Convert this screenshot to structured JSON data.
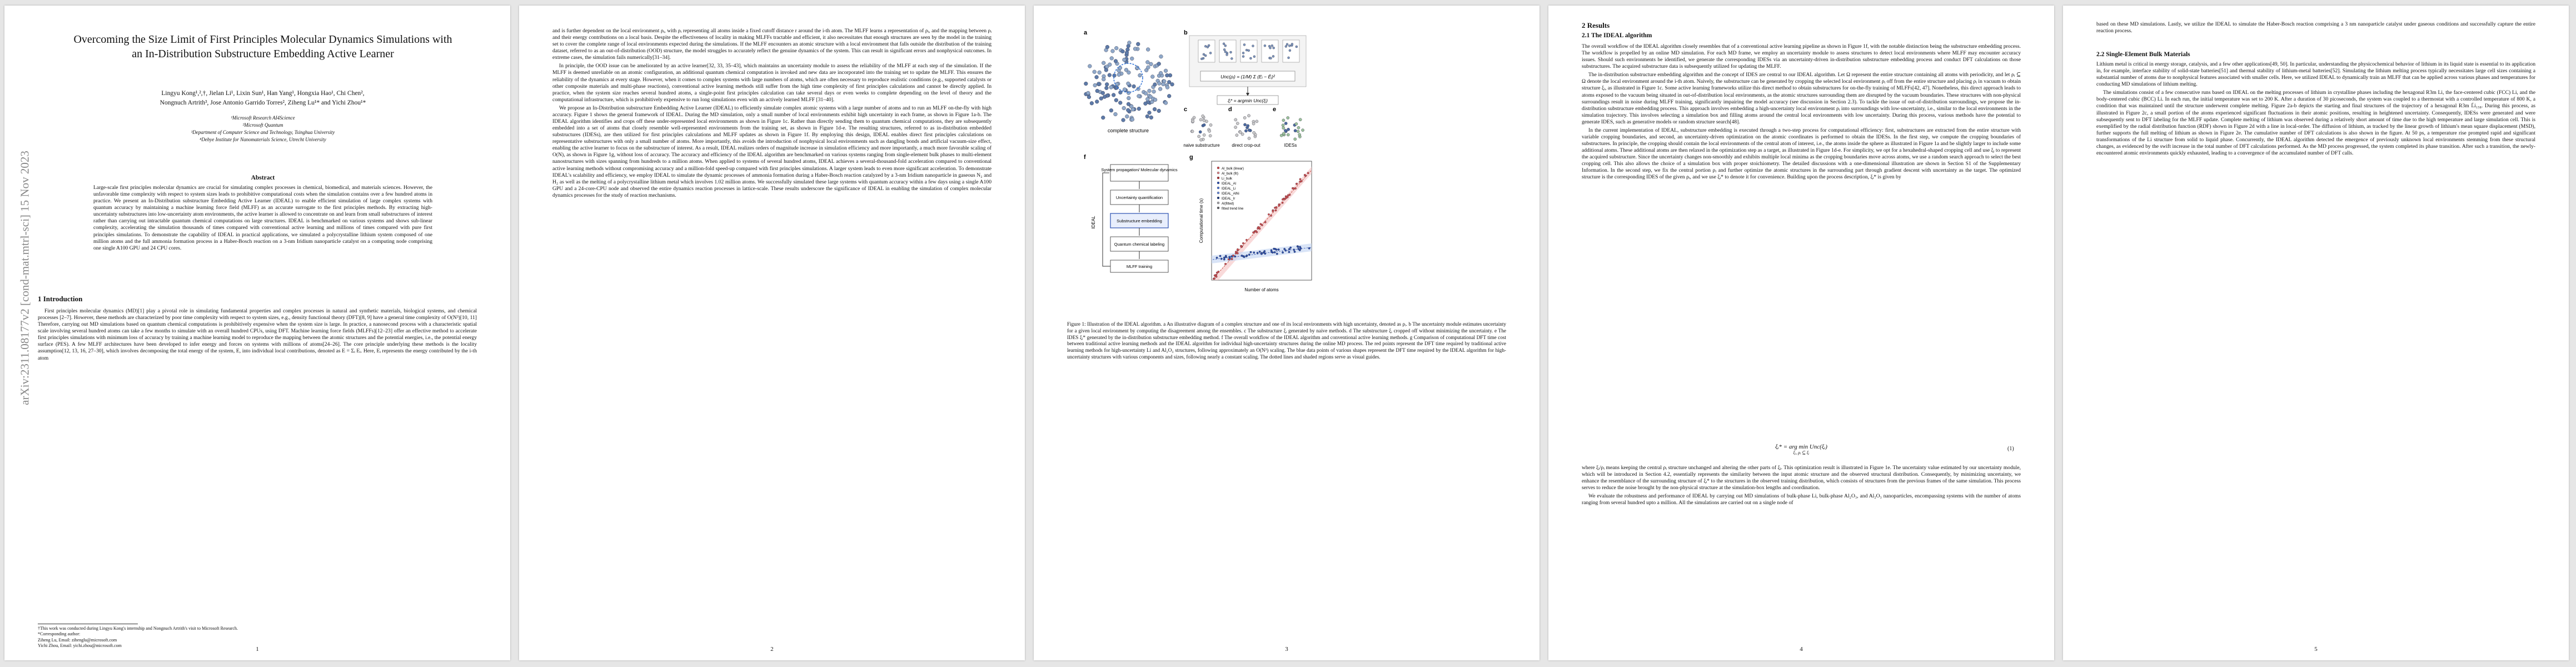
{
  "arxiv_id": "arXiv:2311.08177v2  [cond-mat.mtrl-sci]  15 Nov 2023",
  "page1": {
    "title": "Overcoming the Size Limit of First Principles Molecular Dynamics Simulations with an In-Distribution Substructure Embedding Active Learner",
    "authors_line1": "Lingyu Kong¹,²,†, Jielan Li¹, Lixin Sun¹, Han Yang¹, Hongxia Hao¹, Chi Chen²,",
    "authors_line2": "Nongnuch Artrith³, Jose Antonio Garrido Torres², Ziheng Lu¹* and Yichi Zhou¹*",
    "affil1": "¹Microsoft Research AI4Science",
    "affil2": "²Microsoft Quantum",
    "affil3": "³Department of Computer Science and Technology, Tsinghua University",
    "affil4": "⁴Debye Institute for Nanomaterials Science, Utrecht University",
    "abstract_heading": "Abstract",
    "abstract": "Large-scale first principles molecular dynamics are crucial for simulating complex processes in chemical, biomedical, and materials sciences. However, the unfavorable time complexity with respect to system sizes leads to prohibitive computational costs when the simulation contains over a few hundred atoms in practice. We present an In-Distribution substructure Embedding Active Learner (IDEAL) to enable efficient simulation of large complex systems with quantum accuracy by maintaining a machine learning force field (MLFF) as an accurate surrogate to the first principles methods. By extracting high-uncertainty substructures into low-uncertainty atom environments, the active learner is allowed to concentrate on and learn from small substructures of interest rather than carrying out intractable quantum chemical computations on large structures. IDEAL is benchmarked on various systems and shows sub-linear complexity, accelerating the simulation thousands of times compared with conventional active learning and millions of times compared with pure first principles simulations. To demonstrate the capability of IDEAL in practical applications, we simulated a polycrystalline lithium system composed of one million atoms and the full ammonia formation process in a Haber-Bosch reaction on a 3-nm Iridium nanoparticle catalyst on a computing node comprising one single A100 GPU and 24 CPU cores.",
    "section1": "1   Introduction",
    "intro_p1": "First principles molecular dynamics (MD)[1] play a pivotal role in simulating fundamental properties and complex processes in natural and synthetic materials, biological systems, and chemical processes [2–7]. However, these methods are characterized by poor time complexity with respect to system sizes, e.g., density functional theory (DFT)[8, 9] have a general time complexity of O(N³)[10, 11] Therefore, carrying out MD simulations based on quantum chemical computations is prohibitively expensive when the system size is large. In practice, a nanosecond process with a characteristic spatial scale involving several hundred atoms can take a few months to simulate with an overall hundred CPUs, using DFT. Machine learning force fields (MLFFs)[12–23] offer an effective method to accelerate first principles simulations with minimum loss of accuracy by training a machine learning model to reproduce the mapping between the atomic structures and the potential energies, i.e., the potential energy surface (PES). A few MLFF architectures have been developed to infer energy and forces on systems with millions of atoms[24–26]. The core principle underlying these methods is the locality assumption[12, 13, 16, 27–30], which involves decomposing the total energy of the system, E, into individual local contributions, denoted as E = Σᵢ Eᵢ. Here, Eᵢ represents the energy contributed by the i-th atom",
    "footnote1": "†This work was conducted during Lingyu Kong's internship and Nongnuch Artrith's visit to Microsoft Research.",
    "footnote2": "*Corresponding author:",
    "footnote3": "Ziheng Lu, Email: zihenglu@microsoft.com",
    "footnote4": "Yichi Zhou, Email: yichi.zhou@microsoft.com",
    "page_number": "1"
  },
  "page2": {
    "p1": "and is further dependent on the local environment ρᵢ, with ρᵢ representing all atoms inside a fixed cutoff distance r around the i-th atom. The MLFF learns a representation of ρᵢ, and the mapping between ρᵢ and their energy contributions on a local basis. Despite the effectiveness of locality in making MLFFs tractable and efficient, it also necessitates that enough structures are seen by the model in the training set to cover the complete range of local environments expected during the simulations. If the MLFF encounters an atomic structure with a local environment that falls outside the distribution of the training dataset, referred to as an out-of-distribution (OOD) structure, the model struggles to accurately reflect the genuine dynamics of the system. This can result in significant errors and nonphysical outcomes. In extreme cases, the simulation fails numerically[31–34].",
    "p2": "In principle, the OOD issue can be ameliorated by an active learner[32, 33, 35–43], which maintains an uncertainty module to assess the reliability of the MLFF at each step of the simulation. If the MLFF is deemed unreliable on an atomic configuration, an additional quantum chemical computation is invoked and new data are incorporated into the training set to update the MLFF. This ensures the reliability of the dynamics at every stage. However, when it comes to complex systems with large numbers of atoms, which are often necessary to reproduce realistic conditions (e.g., supported catalysts or other composite materials and multi-phase reactions), conventional active learning methods still suffer from the high time complexity of first principles calculations and cannot be directly applied. In practice, when the system size reaches several hundred atoms, a single-point first principles calculation can take several days or even weeks to complete depending on the level of theory and the computational infrastructure, which is prohibitively expensive to run long simulations even with an actively learned MLFF [31–40].",
    "p3": "We propose an In-Distribution substructure Embedding Active Learner (IDEAL) to efficiently simulate complex atomic systems with a large number of atoms and to run an MLFF on-the-fly with high accuracy. Figure 1 shows the general framework of IDEAL. During the MD simulation, only a small number of local environments exhibit high uncertainty in each frame, as shown in Figure 1a-b. The IDEAL algorithm identifies and crops off these under-represented local environments as shown in Figure 1c. Rather than directly sending them to quantum chemical computations, they are subsequently embedded into a set of atoms that closely resemble well-represented environments from the training set, as shown in Figure 1d-e. The resulting structures, referred to as in-distribution embedded substructures (IDESs), are then utilized for first principles calculations and MLFF updates as shown in Figure 1f. By employing this design, IDEAL enables direct first principles calculations on representative substructures with only a small number of atoms. More importantly, this avoids the introduction of nonphysical local environments such as dangling bonds and artificial vacuum-size effect, enabling the active learner to focus on the substructure of interest. As a result, IDEAL realizes orders of magnitude increase in simulation efficiency and more importantly, a much more favorable scaling of O(N), as shown in Figure 1g, without loss of accuracy. The accuracy and efficiency of the IDEAL algorithm are benchmarked on various systems ranging from single-element bulk phases to multi-element nanostructures with sizes spanning from hundreds to a million atoms. When applied to systems of several hundred atoms, IDEAL achieves a several-thousand-fold acceleration compared to conventional active learning methods without compromising accuracy and a million-fold speed-up compared with first principles simulations. A larger system leads to even more significant acceleration. To demonstrate IDEAL's scalability and efficiency, we employ IDEAL to simulate the dynamic processes of ammonia formation during a Haber-Bosch reaction catalyzed by a 3-nm Iridium nanoparticle in gaseous N₂ and H₂ as well as the melting of a polycrystalline lithium metal which involves 1.02 million atoms. We successfully simulated these large systems with quantum accuracy within a few days using a single A100 GPU and a 24-core-CPU node and observed the entire dynamics reaction processes in lattice-scale. These results underscore the significance of IDEAL in enabling the simulation of complex molecular dynamics processes for the study of reaction mechanisms.",
    "page_number": "2"
  },
  "page3": {
    "figure": {
      "panel_a": "a",
      "panel_b": "b",
      "panel_c": "c",
      "panel_d": "d",
      "panel_e": "e",
      "panel_f": "f",
      "panel_g": "g",
      "complete_structure": "complete structure",
      "naive_substructure": "naive substructure",
      "direct_crop_out": "direct crop-out",
      "ideses": "IDESs",
      "uncertainty_eq": "Unc(ρᵢ) = (1/M) Σ (Eᵢ − Ēᵢ)²",
      "embed_eq": "ξᵢ* = argmin Unc(ξᵢ)",
      "flow_title": "System propagation/ Molecular dynamics",
      "flow_step1": "Uncertainty quantification",
      "flow_step2": "Substructure embedding",
      "flow_step3": "Quantum chemical labeling",
      "flow_step4": "MLFF training",
      "flow_side": "IDEAL",
      "legend": [
        "Al_bulk (linear)",
        "Al_bulk (fit)",
        "Li_bulk",
        "IDEAL_Al",
        "IDEAL_Li",
        "IDEAL_AlNi",
        "IDEAL_Ir",
        "Al(fitted)",
        "fitted trend line"
      ],
      "ylabel": "Computational time (s)",
      "xlabel": "Number of atoms"
    },
    "caption": "Figure 1: Illustration of the IDEAL algorithm. a An illustrative diagram of a complex structure and one of its local environments with high uncertainty, denoted as ρᵢ. b The uncertainty module estimates uncertainty for a given local environment by computing the disagreement among the ensembles. c The substructure ξᵢ generated by naive methods. d The substructure ξᵢ cropped off without minimizing the uncertainty. e The IDES ξᵢ* generated by the in-distribution substructure embedding method. f The overall workflow of the IDEAL algorithm and conventional active learning methods. g Comparison of computational DFT time cost between traditional active learning methods and the IDEAL algorithm for individual high-uncertainty structures during the online MD process. The red points represent the DFT time required by traditional active learning methods for high-uncertainty Li and Al₂O₃ structures, following approximately an O(N³) scaling. The blue data points of various shapes represent the DFT time required by the IDEAL algorithm for high-uncertainty structures with various components and sizes, following nearly a constant scaling. The dotted lines and shaded regions serve as visual guides.",
    "page_number": "3"
  },
  "page4": {
    "section2": "2   Results",
    "subsection21": "2.1   The IDEAL algorithm",
    "p1": "The overall workflow of the IDEAL algorithm closely resembles that of a conventional active learning pipeline as shown in Figure 1f, with the notable distinction being the substructure embedding process. The workflow is propelled by an online MD simulation. For each MD frame, we employ an uncertainty module to assess structures to detect local environments where MLFF may encounter accuracy issues. Should such environments be identified, we generate the corresponding IDESs via an uncertainty-driven in-distribution substructure embedding process and conduct DFT calculations on those substructures. The acquired substructure data is subsequently utilized for updating the MLFF.",
    "p2": "The in-distribution substructure embedding algorithm and the concept of IDES are central to our IDEAL algorithm. Let Ω represent the entire structure containing all atoms with periodicity, and let ρᵢ ⊆ Ω denote the local environment around the i-th atom. Naively, the substructure can be generated by cropping the selected local environment ρᵢ off from the entire structure and placing ρᵢ in vacuum to obtain structure ξᵢ, as illustrated in Figure 1c. Some active learning frameworks utilize this direct method to obtain substructures for on-the-fly training of MLFFs[42, 47]. Nonetheless, this direct approach leads to atoms exposed to the vacuum being situated in out-of-distribution local environments, as the atomic structures surrounding them are disrupted by the vacuum boundaries. These structures with non-physical surroundings result in noise during MLFF training, significantly impairing the model accuracy (see discussion in Section 2.3). To tackle the issue of out-of-distribution surroundings, we propose the in-distribution substructure embedding process. This approach involves embedding a high-uncertainty local environment ρᵢ into surroundings with low-uncertainty, i.e., similar to the local environments in the simulation trajectory. This involves selecting a simulation box and filling atoms around the central local environments with low uncertainty. During this process, various methods have the potential to generate IDES, such as generative models or random structure search[48].",
    "p3": "In the current implementation of IDEAL, substructure embedding is executed through a two-step process for computational efficiency: first, substructures are extracted from the entire structure with variable cropping boundaries, and second, an uncertainty-driven optimization on the atomic coordinates is performed to obtain the IDESs. In the first step, we compute the cropping boundaries of substructures. In principle, the cropping should contain the local environments of the central atom of interest, i.e., the atoms inside the sphere as illustrated in Figure 1a and be slightly larger to include some additional atoms. These additional atoms are then relaxed in the optimization step as a target, as illustrated in Figure 1d-e. For simplicity, we opt for a hexahedral-shaped cropping cell and use ξᵢ to represent the acquired substructure. Since the uncertainty changes non-smoothly and exhibits multiple local minima as the cropping boundaries move across atoms, we use a random search approach to select the best cropping cell. This also allows the choice of a simulation box with proper stoichiometry. The detailed discussions with a one-dimensional illustration are shown in Section S1 of the Supplementary Information. In the second step, we fix the central portion ρᵢ and further optimize the atomic structures in the surrounding part through gradient descent with uncertainty as the target. The optimized structure is the corresponding IDES of the given ρᵢ, and we use ξᵢ* to denote it for convenience. Building upon the process description, ξᵢ* is given by",
    "eq1": "ξᵢ* = arg min Unc(ξᵢ)",
    "eq1_sub": "ξᵢ, ρᵢ ⊆ ξᵢ",
    "eq1_num": "(1)",
    "p4": "where ξᵢ/ρᵢ means keeping the central ρᵢ structure unchanged and altering the other parts of ξᵢ. This optimization result is illustrated in Figure 1e. The uncertainty value estimated by our uncertainty module, which will be introduced in Section 4.2, essentially represents the similarity between the input atomic structure and the observed structural distribution. Consequently, by minimizing uncertainty, we enhance the resemblance of the surrounding structure of ξᵢ* to the structures in the observed training distribution, which consists of structures from the previous frames of the same simulation. This process serves to reduce the noise brought by the non-physical structure at the simulation-box lengths and coordination.",
    "p5": "We evaluate the robustness and performance of IDEAL by carrying out MD simulations of bulk-phase Li, bulk-phase Al₂O₃, and Al₂O₃ nanoparticles, encompassing systems with the number of atoms ranging from several hundred upto a million. All the simulations are carried out on a single node of",
    "page_number": "4"
  },
  "page5": {
    "p1": "based on these MD simulations. Lastly, we utilize the IDEAL to simulate the Haber-Bosch reaction comprising a 3 nm nanoparticle catalyst under gaseous conditions and successfully capture the entire reaction process.",
    "subsection22": "2.2   Single-Element Bulk Materials",
    "p2": "Lithium metal is critical in energy storage, catalysis, and a few other applications[49, 50]. In particular, understanding the physicochemical behavior of lithium in its liquid state is essential to its application in, for example, interface stability of solid-state batteries[51] and thermal stability of lithium-metal batteries[52]. Simulating the lithium melting process typically necessitates large cell sizes containing a substantial number of atoms due to nonphysical features associated with smaller cells. Here, we utilized IDEAL to dynamically train an MLFF that can be applied across various phases and temperatures for conducting MD simulations of lithium melting.",
    "p3": "The simulations consist of a few consecutive runs based on IDEAL on the melting processes of lithium in crystalline phases including the hexagonal R3m Li, the face-centered cubic (FCC) Li, and the body-centered cubic (BCC) Li. In each run, the initial temperature was set to 200 K. After a duration of 30 picoseconds, the system was coupled to a thermostat with a controlled temperature of 800 K, a condition that was maintained until the structure underwent complete melting. Figure 2a-b depicts the starting and final structures of the trajectory of a hexagonal R3m L̄i₁₅₈. During this process, as illustrated in Figure 2c, a small portion of the atoms experienced significant fluctuations in their atomic positions, resulting in heightened uncertainty. Consequently, IDESs were generated and were subsequently sent to DFT labeling for the MLFF update. Complete melting of lithium was observed during a relatively short amount of time due to the high temperature and large simulation cell. This is exemplified by the radial distribution function (RDF) shown in Figure 2d with a line in local-order. The diffusion of lithium, as tracked by the linear growth of lithium's mean square displacement (MSD), further supports the full melting of lithium as shown in Figure 2e. The cumulative number of DFT calculations is also shown in the figure. At 50 ps, a temperature rise prompted rapid and significant transformations of the Li structure from solid to liquid phase. Concurrently, the IDEAL algorithm detected the emergence of previously unknown local environments stemming from these structural changes, as evidenced by the swift increase in the total number of DFT calculations performed. As the MD process progressed, the system completed its phase transition. After such a transition, the newly-encountered atomic environments quickly exhausted, leading to a convergence of the accumulated number of DFT calls.",
    "page_number": "5"
  }
}
